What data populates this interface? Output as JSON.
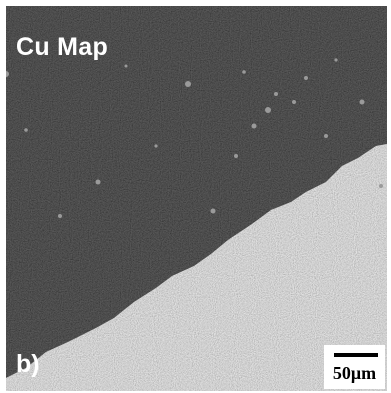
{
  "figure": {
    "title": "Cu Map",
    "panel_label": "b)",
    "scale_bar": {
      "label": "50μm"
    }
  }
}
